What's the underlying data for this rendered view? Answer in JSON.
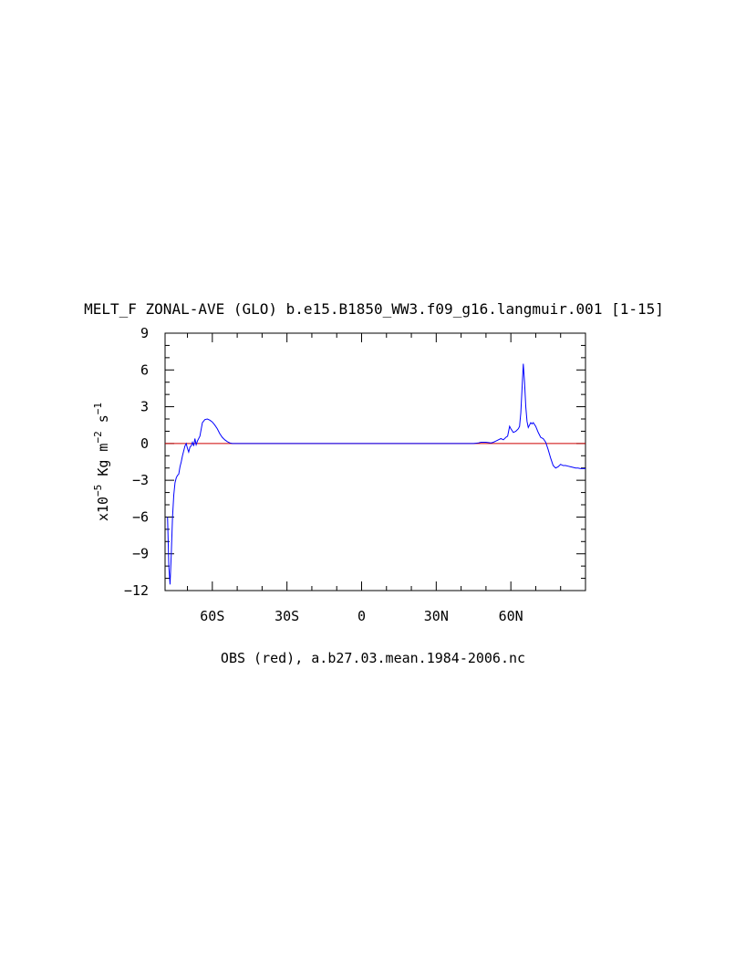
{
  "chart_data": {
    "type": "line",
    "title": "MELT_F ZONAL-AVE (GLO) b.e15.B1850_WW3.f09_g16.langmuir.001 [1-15]",
    "xlabel": "OBS (red), a.b27.03.mean.1984-2006.nc",
    "ylabel": "x10-5 Kg m-2 s-1",
    "ylabel_parts": {
      "base": "x10",
      "exp1": "−5",
      "mid": " Kg m",
      "exp2": "−2",
      "mid2": " s",
      "exp3": "−1"
    },
    "xlim": [
      -79,
      90
    ],
    "ylim": [
      -12,
      9
    ],
    "x_ticks": [
      {
        "value": -60,
        "label": "60S"
      },
      {
        "value": -30,
        "label": "30S"
      },
      {
        "value": 0,
        "label": "0"
      },
      {
        "value": 30,
        "label": "30N"
      },
      {
        "value": 60,
        "label": "60N"
      }
    ],
    "y_ticks": [
      {
        "value": 9,
        "label": "9"
      },
      {
        "value": 6,
        "label": "6"
      },
      {
        "value": 3,
        "label": "3"
      },
      {
        "value": 0,
        "label": "0"
      },
      {
        "value": -3,
        "label": "−3"
      },
      {
        "value": -6,
        "label": "−6"
      },
      {
        "value": -9,
        "label": "−9"
      },
      {
        "value": -12,
        "label": "−12"
      }
    ],
    "series": [
      {
        "name": "OBS (red)",
        "color": "#cc0000",
        "x": [
          -79,
          90
        ],
        "y": [
          0,
          0
        ]
      },
      {
        "color": "#0000ff",
        "x": [
          -78,
          -77.5,
          -77,
          -76.5,
          -76,
          -75.5,
          -75,
          -74.5,
          -74,
          -73.5,
          -73,
          -72.5,
          -72,
          -71.5,
          -71,
          -70.5,
          -70,
          -69.5,
          -69,
          -68.5,
          -68,
          -67.5,
          -67,
          -66.5,
          -66,
          -65,
          -64,
          -63,
          -62,
          -61,
          -60,
          -59,
          -58,
          -57,
          -56,
          -55,
          -54,
          -53,
          -52,
          -50,
          -45,
          -30,
          0,
          30,
          40,
          45,
          47,
          48,
          50,
          52,
          53,
          54,
          55,
          56,
          57,
          58,
          58.7,
          59,
          59.5,
          60,
          61,
          62,
          63,
          63.5,
          64,
          64.5,
          65,
          65.5,
          66,
          66.5,
          67,
          67.5,
          68,
          68.5,
          69,
          70,
          71,
          72,
          73,
          74,
          75,
          76,
          77,
          78,
          79,
          80,
          81,
          82,
          83,
          84,
          85,
          86,
          87,
          88,
          89,
          90
        ],
        "y": [
          -6,
          -10,
          -11.5,
          -9,
          -6,
          -4.2,
          -3.2,
          -2.8,
          -2.6,
          -2.5,
          -1.9,
          -1.5,
          -1.0,
          -0.6,
          -0.2,
          0.0,
          -0.4,
          -0.7,
          -0.3,
          -0.2,
          0.1,
          -0.2,
          0.4,
          -0.1,
          0.2,
          0.6,
          1.7,
          1.95,
          2.0,
          1.9,
          1.75,
          1.5,
          1.2,
          0.8,
          0.5,
          0.3,
          0.15,
          0.05,
          0.0,
          0.0,
          0.0,
          0.0,
          0.0,
          0.0,
          0.0,
          0.0,
          0.05,
          0.1,
          0.1,
          0.05,
          0.1,
          0.2,
          0.3,
          0.4,
          0.3,
          0.5,
          0.6,
          0.9,
          1.4,
          1.2,
          0.9,
          1.0,
          1.2,
          1.4,
          2.5,
          4.5,
          6.5,
          5.0,
          3.0,
          1.8,
          1.3,
          1.5,
          1.7,
          1.6,
          1.7,
          1.4,
          0.9,
          0.5,
          0.4,
          0.1,
          -0.5,
          -1.2,
          -1.8,
          -2.0,
          -1.9,
          -1.7,
          -1.8,
          -1.8,
          -1.85,
          -1.9,
          -1.95,
          -2.0,
          -2.0,
          -2.05,
          -2.05,
          -2.05
        ]
      }
    ]
  }
}
